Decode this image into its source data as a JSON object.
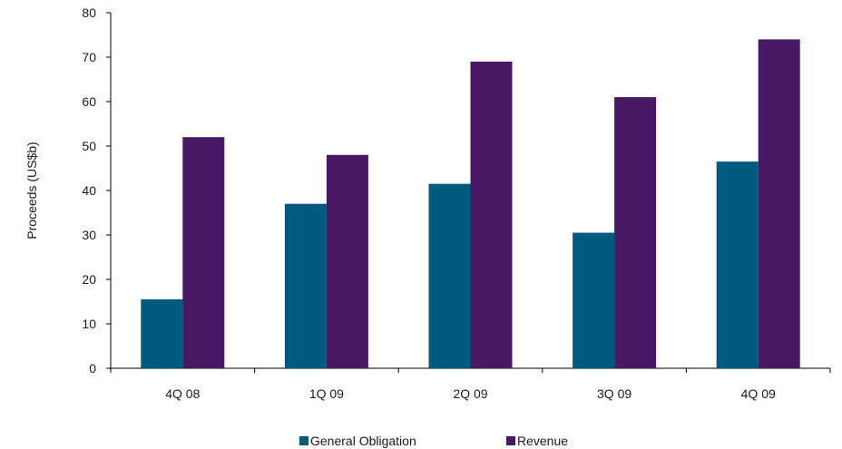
{
  "chart_data": {
    "type": "bar",
    "title": "",
    "xlabel": "",
    "ylabel": "Proceeds (US$b)",
    "ylim": [
      0,
      80
    ],
    "yticks": [
      0,
      10,
      20,
      30,
      40,
      50,
      60,
      70,
      80
    ],
    "categories": [
      "4Q 08",
      "1Q 09",
      "2Q 09",
      "3Q 09",
      "4Q 09"
    ],
    "series": [
      {
        "name": "General Obligation",
        "color": "#005a7f",
        "values": [
          15.5,
          37,
          41.5,
          30.5,
          46.5
        ]
      },
      {
        "name": "Revenue",
        "color": "#481865",
        "values": [
          52,
          48,
          69,
          61,
          74
        ]
      }
    ],
    "grid": false,
    "legend": "bottom-center"
  }
}
